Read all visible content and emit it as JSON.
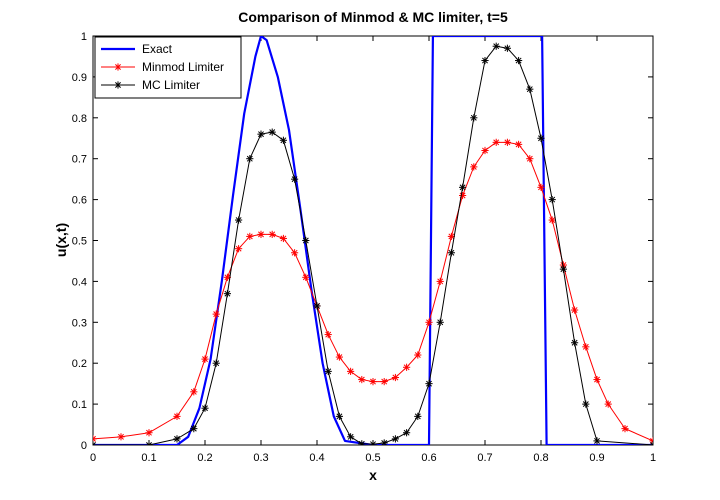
{
  "chart_data": {
    "type": "line",
    "title": "Comparison of Minmod & MC limiter, t=5",
    "xlabel": "x",
    "ylabel": "u(x,t)",
    "xlim": [
      0,
      1
    ],
    "ylim": [
      0,
      1
    ],
    "x_ticks": [
      "0",
      "0.1",
      "0.2",
      "0.3",
      "0.4",
      "0.5",
      "0.6",
      "0.7",
      "0.8",
      "0.9",
      "1"
    ],
    "y_ticks": [
      "0",
      "0.1",
      "0.2",
      "0.3",
      "0.4",
      "0.5",
      "0.6",
      "0.7",
      "0.8",
      "0.9",
      "1"
    ],
    "grid": false,
    "legend_position": "top-left",
    "series": [
      {
        "name": "Exact",
        "color": "#0000ff",
        "marker": "none",
        "x": [
          0,
          0.15,
          0.17,
          0.19,
          0.21,
          0.23,
          0.25,
          0.27,
          0.29,
          0.3,
          0.31,
          0.33,
          0.35,
          0.37,
          0.39,
          0.41,
          0.43,
          0.45,
          0.5,
          0.6,
          0.607,
          0.613,
          0.795,
          0.802,
          0.81,
          1
        ],
        "y": [
          0,
          0,
          0.02,
          0.09,
          0.21,
          0.4,
          0.61,
          0.81,
          0.95,
          1.0,
          0.99,
          0.9,
          0.77,
          0.58,
          0.38,
          0.2,
          0.07,
          0.01,
          0,
          0,
          1.0,
          1.0,
          1.0,
          1.0,
          0,
          0
        ]
      },
      {
        "name": "Minmod Limiter",
        "color": "#ff0000",
        "marker": "*",
        "x": [
          0,
          0.05,
          0.1,
          0.15,
          0.18,
          0.2,
          0.22,
          0.24,
          0.26,
          0.28,
          0.3,
          0.32,
          0.34,
          0.36,
          0.38,
          0.4,
          0.42,
          0.44,
          0.46,
          0.48,
          0.5,
          0.52,
          0.54,
          0.56,
          0.58,
          0.6,
          0.62,
          0.64,
          0.66,
          0.68,
          0.7,
          0.72,
          0.74,
          0.76,
          0.78,
          0.8,
          0.82,
          0.84,
          0.86,
          0.88,
          0.9,
          0.92,
          0.95,
          1
        ],
        "y": [
          0.015,
          0.02,
          0.03,
          0.07,
          0.13,
          0.21,
          0.32,
          0.41,
          0.48,
          0.51,
          0.515,
          0.515,
          0.505,
          0.47,
          0.41,
          0.34,
          0.27,
          0.215,
          0.18,
          0.16,
          0.155,
          0.155,
          0.165,
          0.19,
          0.22,
          0.3,
          0.4,
          0.51,
          0.61,
          0.68,
          0.72,
          0.74,
          0.74,
          0.735,
          0.7,
          0.63,
          0.55,
          0.44,
          0.33,
          0.24,
          0.16,
          0.1,
          0.04,
          0.01
        ]
      },
      {
        "name": "MC Limiter",
        "color": "#000000",
        "marker": "*",
        "x": [
          0,
          0.1,
          0.15,
          0.18,
          0.2,
          0.22,
          0.24,
          0.26,
          0.28,
          0.3,
          0.32,
          0.34,
          0.36,
          0.38,
          0.4,
          0.42,
          0.44,
          0.46,
          0.48,
          0.5,
          0.52,
          0.54,
          0.56,
          0.58,
          0.6,
          0.62,
          0.64,
          0.66,
          0.68,
          0.7,
          0.72,
          0.74,
          0.76,
          0.78,
          0.8,
          0.82,
          0.84,
          0.86,
          0.88,
          0.9,
          1
        ],
        "y": [
          0,
          0,
          0.015,
          0.04,
          0.09,
          0.2,
          0.37,
          0.55,
          0.7,
          0.76,
          0.765,
          0.745,
          0.65,
          0.5,
          0.34,
          0.18,
          0.07,
          0.02,
          0.003,
          0.002,
          0.005,
          0.015,
          0.03,
          0.07,
          0.15,
          0.3,
          0.47,
          0.63,
          0.8,
          0.94,
          0.975,
          0.97,
          0.94,
          0.87,
          0.75,
          0.6,
          0.43,
          0.25,
          0.1,
          0.01,
          0
        ]
      }
    ]
  }
}
